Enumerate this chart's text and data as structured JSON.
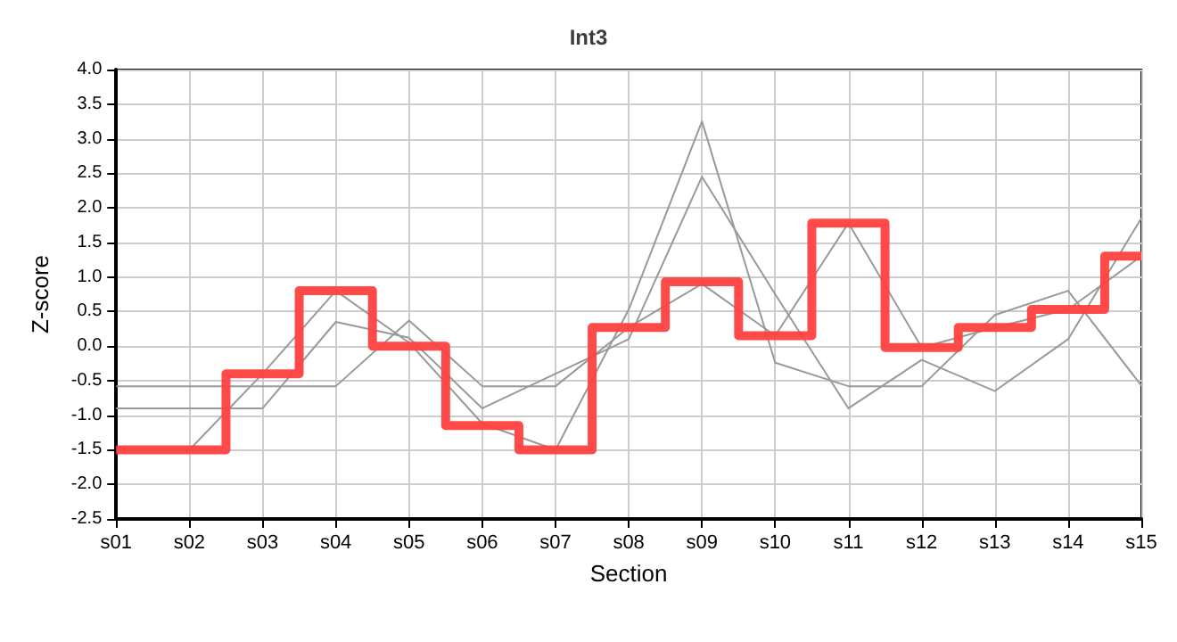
{
  "chart_data": {
    "type": "line",
    "title": "Int3",
    "xlabel": "Section",
    "ylabel": "Z-score",
    "categories": [
      "s01",
      "s02",
      "s03",
      "s04",
      "s05",
      "s06",
      "s07",
      "s08",
      "s09",
      "s10",
      "s11",
      "s12",
      "s13",
      "s14",
      "s15"
    ],
    "series": [
      {
        "color": "#999999",
        "values": [
          -0.58,
          -0.58,
          -0.58,
          -0.58,
          0.37,
          -0.58,
          -0.58,
          0.27,
          0.9,
          0.15,
          1.78,
          -0.02,
          0.27,
          0.53,
          1.3
        ]
      },
      {
        "color": "#999999",
        "values": [
          -0.9,
          -0.9,
          -0.9,
          0.35,
          0.12,
          -0.9,
          -0.4,
          0.1,
          2.45,
          0.75,
          -0.9,
          -0.2,
          -0.65,
          0.1,
          1.85
        ]
      },
      {
        "color": "#999999",
        "values": [
          -1.5,
          -1.5,
          -0.4,
          0.8,
          0.05,
          -1.12,
          -1.5,
          0.53,
          3.25,
          -0.24,
          -0.58,
          -0.58,
          0.45,
          0.8,
          -0.57
        ]
      },
      {
        "type": "step",
        "color": "#ff4040",
        "values": [
          -1.5,
          -1.5,
          -0.4,
          0.8,
          0.0,
          -1.15,
          -1.5,
          0.27,
          0.93,
          0.15,
          1.78,
          -0.02,
          0.27,
          0.53,
          1.3
        ]
      }
    ],
    "ylim": [
      -2.5,
      4.0
    ],
    "yticks": [
      -2.5,
      {
        "value": -2,
        "label": "-2.0"
      },
      -1.5,
      {
        "value": -1,
        "label": "-1.0"
      },
      -0.5,
      {
        "value": 0,
        "label": "0.0"
      },
      0.5,
      {
        "value": 1,
        "label": "1.0"
      },
      1.5,
      {
        "value": 2,
        "label": "2.0"
      },
      2.5,
      {
        "value": 3,
        "label": "3.0"
      },
      3.5,
      {
        "value": 4,
        "label": "4.0"
      }
    ],
    "grid": true,
    "marker": "none",
    "line_style": "solid"
  }
}
